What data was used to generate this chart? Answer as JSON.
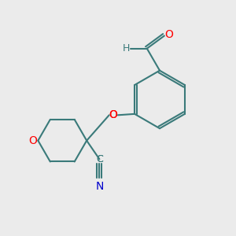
{
  "bg_color": "#ebebeb",
  "bond_color": "#3a7a7a",
  "o_color": "#ff0000",
  "n_color": "#0000cc",
  "c_color": "#3a7a7a",
  "h_color": "#3a7a7a",
  "line_width": 1.5,
  "fig_size": [
    3.0,
    3.0
  ],
  "dpi": 100,
  "xlim": [
    0,
    10
  ],
  "ylim": [
    0,
    10
  ]
}
